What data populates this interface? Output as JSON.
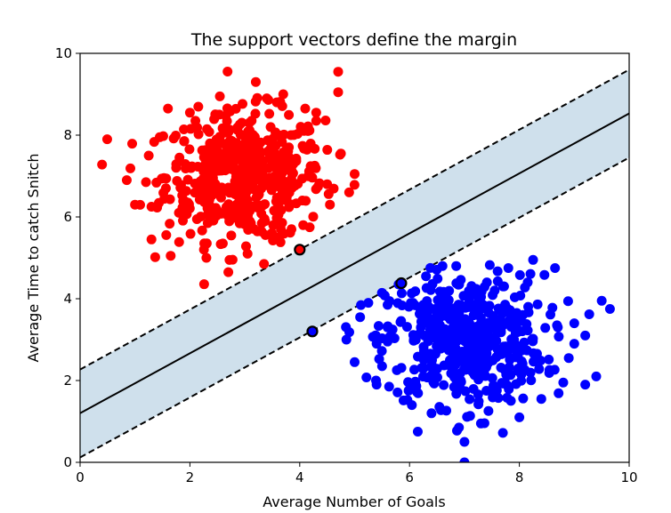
{
  "chart_data": {
    "type": "scatter",
    "title": "The support vectors define the margin",
    "xlabel": "Average Number of Goals",
    "ylabel": "Average Time to catch Snitch",
    "xlim": [
      0,
      10
    ],
    "ylim": [
      0,
      10
    ],
    "xticks": [
      0,
      2,
      4,
      6,
      8,
      10
    ],
    "yticks": [
      0,
      2,
      4,
      6,
      8,
      10
    ],
    "grid": false,
    "colors": {
      "class_a": "#ff0000",
      "class_b": "#0000ff",
      "margin_fill": "#cfe0ec",
      "line": "#000000"
    },
    "decision_boundary": {
      "slope": 0.733,
      "intercept": 1.2
    },
    "margin_upper": {
      "slope": 0.733,
      "intercept": 2.27
    },
    "margin_lower": {
      "slope": 0.733,
      "intercept": 0.12
    },
    "support_vectors": [
      {
        "x": 4.0,
        "y": 5.2,
        "class": "class_a"
      },
      {
        "x": 5.85,
        "y": 4.38,
        "class": "class_b"
      },
      {
        "x": 4.23,
        "y": 3.2,
        "class": "class_b"
      }
    ],
    "series": [
      {
        "class": "class_a",
        "center": [
          3.0,
          7.0
        ],
        "count": 500,
        "points": [
          [
            0.4,
            7.28
          ],
          [
            0.85,
            6.9
          ],
          [
            1.0,
            6.3
          ],
          [
            1.2,
            6.85
          ],
          [
            1.3,
            5.45
          ],
          [
            1.25,
            7.5
          ],
          [
            1.6,
            8.65
          ],
          [
            1.65,
            5.05
          ],
          [
            1.8,
            6.1
          ],
          [
            2.0,
            8.55
          ],
          [
            2.3,
            5.0
          ],
          [
            2.7,
            4.65
          ],
          [
            3.2,
            9.3
          ],
          [
            3.4,
            8.9
          ],
          [
            3.7,
            9.0
          ],
          [
            4.15,
            8.1
          ],
          [
            4.3,
            8.35
          ],
          [
            4.7,
            9.55
          ],
          [
            4.7,
            9.05
          ],
          [
            4.9,
            6.6
          ],
          [
            5.0,
            7.05
          ],
          [
            3.35,
            4.85
          ],
          [
            3.05,
            5.1
          ],
          [
            3.6,
            5.5
          ],
          [
            3.85,
            5.7
          ],
          [
            2.1,
            8.35
          ],
          [
            2.5,
            8.5
          ],
          [
            4.1,
            8.65
          ],
          [
            4.3,
            8.55
          ],
          [
            1.45,
            7.95
          ],
          [
            4.75,
            7.55
          ],
          [
            1.3,
            6.25
          ],
          [
            4.55,
            6.3
          ],
          [
            2.6,
            5.35
          ],
          [
            4.5,
            6.8
          ]
        ]
      },
      {
        "class": "class_b",
        "center": [
          7.0,
          3.0
        ],
        "count": 500,
        "points": [
          [
            4.85,
            3.0
          ],
          [
            5.0,
            2.45
          ],
          [
            5.1,
            3.55
          ],
          [
            5.25,
            3.9
          ],
          [
            5.4,
            1.9
          ],
          [
            5.5,
            2.35
          ],
          [
            6.15,
            0.75
          ],
          [
            6.4,
            1.2
          ],
          [
            6.9,
            0.85
          ],
          [
            7.0,
            0.5
          ],
          [
            7.3,
            0.95
          ],
          [
            7.7,
            0.72
          ],
          [
            8.0,
            1.1
          ],
          [
            8.4,
            1.55
          ],
          [
            8.8,
            1.95
          ],
          [
            9.2,
            1.9
          ],
          [
            9.4,
            2.1
          ],
          [
            9.0,
            2.9
          ],
          [
            9.2,
            3.1
          ],
          [
            9.5,
            3.95
          ],
          [
            9.65,
            3.75
          ],
          [
            9.0,
            3.4
          ],
          [
            8.65,
            4.75
          ],
          [
            8.25,
            4.95
          ],
          [
            7.8,
            4.75
          ],
          [
            6.6,
            4.8
          ],
          [
            6.85,
            4.8
          ],
          [
            6.3,
            4.55
          ],
          [
            7.0,
            0.0
          ],
          [
            7.55,
            4.2
          ],
          [
            5.8,
            4.35
          ],
          [
            5.6,
            3.85
          ],
          [
            5.4,
            2.9
          ],
          [
            8.9,
            2.55
          ],
          [
            7.4,
            1.75
          ]
        ]
      }
    ]
  }
}
